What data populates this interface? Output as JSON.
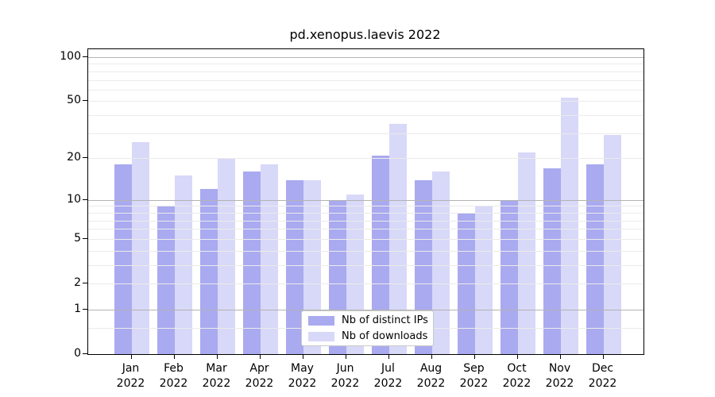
{
  "title": "pd.xenopus.laevis 2022",
  "chart_data": {
    "type": "bar",
    "title": "pd.xenopus.laevis 2022",
    "categories": [
      "Jan 2022",
      "Feb 2022",
      "Mar 2022",
      "Apr 2022",
      "May 2022",
      "Jun 2022",
      "Jul 2022",
      "Aug 2022",
      "Sep 2022",
      "Oct 2022",
      "Nov 2022",
      "Dec 2022"
    ],
    "series": [
      {
        "name": "Nb of distinct IPs",
        "color": "#aaaaf0",
        "values": [
          18,
          9,
          12,
          16,
          14,
          10,
          21,
          14,
          8,
          10,
          17,
          18
        ]
      },
      {
        "name": "Nb of downloads",
        "color": "#d8d8f8",
        "values": [
          26,
          15,
          20,
          18,
          14,
          11,
          35,
          16,
          9,
          22,
          53,
          29
        ]
      }
    ],
    "xlabel": "",
    "ylabel": "",
    "yscale": "log10(value+1)",
    "yticks": [
      100,
      50,
      20,
      10,
      5,
      2,
      1,
      0
    ],
    "ylim": [
      0,
      113
    ],
    "grid": "horizontal, minor + major (major at 1, 10, 100)",
    "legend_position": "inside bottom-center"
  },
  "colors": {
    "bar_distinct_ips": "#aaaaf0",
    "bar_downloads": "#d8d8f8",
    "grid_minor": "#ebebeb",
    "grid_major": "#b3b3b3",
    "axis": "#000000",
    "legend_border": "#c9c9c9"
  }
}
